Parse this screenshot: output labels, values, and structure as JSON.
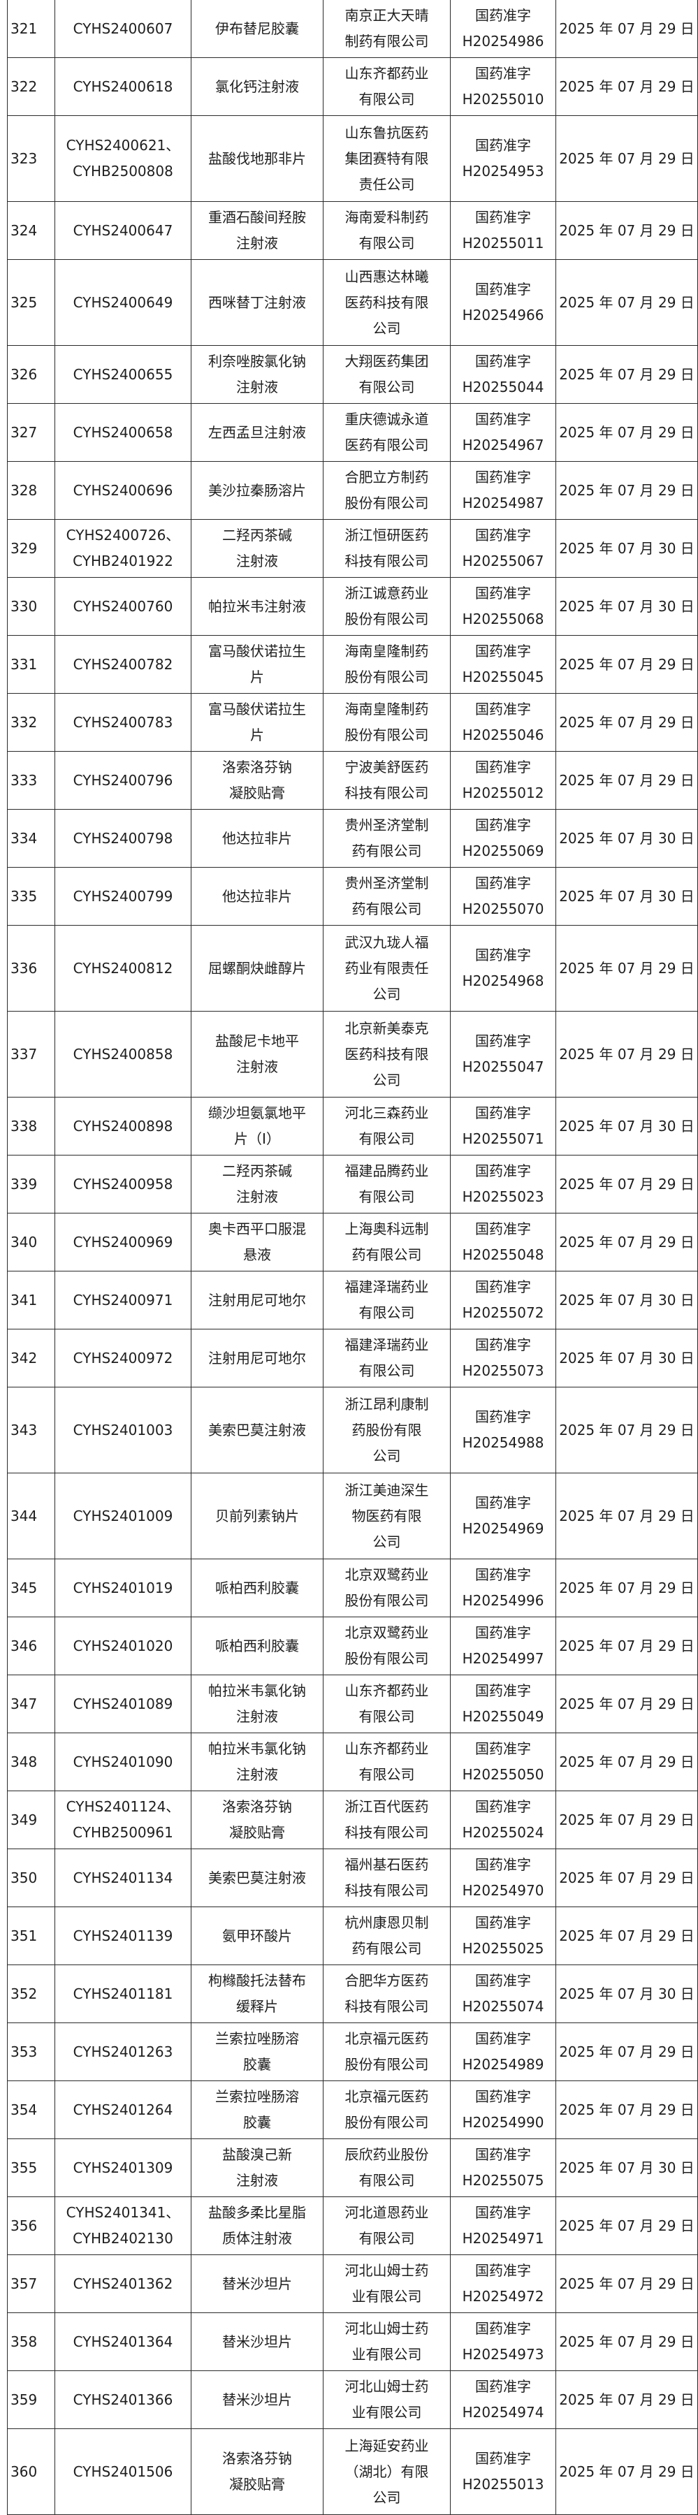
{
  "rows": [
    {
      "no": "321",
      "code": "CYHS2400607",
      "name": "伊布替尼胶囊",
      "company": "南京正大天晴\n制药有限公司",
      "approval": "国药准字\nH20254986",
      "date": "2025 年 07 月 29 日"
    },
    {
      "no": "322",
      "code": "CYHS2400618",
      "name": "氯化钙注射液",
      "company": "山东齐都药业\n有限公司",
      "approval": "国药准字\nH20255010",
      "date": "2025 年 07 月 29 日"
    },
    {
      "no": "323",
      "code": "CYHS2400621、\nCYHB2500808",
      "name": "盐酸伐地那非片",
      "company": "山东鲁抗医药\n集团赛特有限\n责任公司",
      "approval": "国药准字\nH20254953",
      "date": "2025 年 07 月 29 日"
    },
    {
      "no": "324",
      "code": "CYHS2400647",
      "name": "重酒石酸间羟胺\n注射液",
      "company": "海南爱科制药\n有限公司",
      "approval": "国药准字\nH20255011",
      "date": "2025 年 07 月 29 日"
    },
    {
      "no": "325",
      "code": "CYHS2400649",
      "name": "西咪替丁注射液",
      "company": "山西惠达林曦\n医药科技有限\n公司",
      "approval": "国药准字\nH20254966",
      "date": "2025 年 07 月 29 日"
    },
    {
      "no": "326",
      "code": "CYHS2400655",
      "name": "利奈唑胺氯化钠\n注射液",
      "company": "大翔医药集团\n有限公司",
      "approval": "国药准字\nH20255044",
      "date": "2025 年 07 月 29 日"
    },
    {
      "no": "327",
      "code": "CYHS2400658",
      "name": "左西孟旦注射液",
      "company": "重庆德诚永道\n医药有限公司",
      "approval": "国药准字\nH20254967",
      "date": "2025 年 07 月 29 日"
    },
    {
      "no": "328",
      "code": "CYHS2400696",
      "name": "美沙拉秦肠溶片",
      "company": "合肥立方制药\n股份有限公司",
      "approval": "国药准字\nH20254987",
      "date": "2025 年 07 月 29 日"
    },
    {
      "no": "329",
      "code": "CYHS2400726、\nCYHB2401922",
      "name": "二羟丙茶碱\n注射液",
      "company": "浙江恒研医药\n科技有限公司",
      "approval": "国药准字\nH20255067",
      "date": "2025 年 07 月 30 日"
    },
    {
      "no": "330",
      "code": "CYHS2400760",
      "name": "帕拉米韦注射液",
      "company": "浙江诚意药业\n股份有限公司",
      "approval": "国药准字\nH20255068",
      "date": "2025 年 07 月 30 日"
    },
    {
      "no": "331",
      "code": "CYHS2400782",
      "name": "富马酸伏诺拉生\n片",
      "company": "海南皇隆制药\n股份有限公司",
      "approval": "国药准字\nH20255045",
      "date": "2025 年 07 月 29 日"
    },
    {
      "no": "332",
      "code": "CYHS2400783",
      "name": "富马酸伏诺拉生\n片",
      "company": "海南皇隆制药\n股份有限公司",
      "approval": "国药准字\nH20255046",
      "date": "2025 年 07 月 29 日"
    },
    {
      "no": "333",
      "code": "CYHS2400796",
      "name": "洛索洛芬钠\n凝胶贴膏",
      "company": "宁波美舒医药\n科技有限公司",
      "approval": "国药准字\nH20255012",
      "date": "2025 年 07 月 29 日"
    },
    {
      "no": "334",
      "code": "CYHS2400798",
      "name": "他达拉非片",
      "company": "贵州圣济堂制\n药有限公司",
      "approval": "国药准字\nH20255069",
      "date": "2025 年 07 月 30 日"
    },
    {
      "no": "335",
      "code": "CYHS2400799",
      "name": "他达拉非片",
      "company": "贵州圣济堂制\n药有限公司",
      "approval": "国药准字\nH20255070",
      "date": "2025 年 07 月 30 日"
    },
    {
      "no": "336",
      "code": "CYHS2400812",
      "name": "屈螺酮炔雌醇片",
      "company": "武汉九珑人福\n药业有限责任\n公司",
      "approval": "国药准字\nH20254968",
      "date": "2025 年 07 月 29 日"
    },
    {
      "no": "337",
      "code": "CYHS2400858",
      "name": "盐酸尼卡地平\n注射液",
      "company": "北京新美泰克\n医药科技有限\n公司",
      "approval": "国药准字\nH20255047",
      "date": "2025 年 07 月 29 日"
    },
    {
      "no": "338",
      "code": "CYHS2400898",
      "name": "缬沙坦氨氯地平\n片（I）",
      "company": "河北三森药业\n有限公司",
      "approval": "国药准字\nH20255071",
      "date": "2025 年 07 月 30 日"
    },
    {
      "no": "339",
      "code": "CYHS2400958",
      "name": "二羟丙茶碱\n注射液",
      "company": "福建品腾药业\n有限公司",
      "approval": "国药准字\nH20255023",
      "date": "2025 年 07 月 29 日"
    },
    {
      "no": "340",
      "code": "CYHS2400969",
      "name": "奥卡西平口服混\n悬液",
      "company": "上海奥科远制\n药有限公司",
      "approval": "国药准字\nH20255048",
      "date": "2025 年 07 月 29 日"
    },
    {
      "no": "341",
      "code": "CYHS2400971",
      "name": "注射用尼可地尔",
      "company": "福建泽瑞药业\n有限公司",
      "approval": "国药准字\nH20255072",
      "date": "2025 年 07 月 30 日"
    },
    {
      "no": "342",
      "code": "CYHS2400972",
      "name": "注射用尼可地尔",
      "company": "福建泽瑞药业\n有限公司",
      "approval": "国药准字\nH20255073",
      "date": "2025 年 07 月 30 日"
    },
    {
      "no": "343",
      "code": "CYHS2401003",
      "name": "美索巴莫注射液",
      "company": "浙江昂利康制\n药股份有限\n公司",
      "approval": "国药准字\nH20254988",
      "date": "2025 年 07 月 29 日"
    },
    {
      "no": "344",
      "code": "CYHS2401009",
      "name": "贝前列素钠片",
      "company": "浙江美迪深生\n物医药有限\n公司",
      "approval": "国药准字\nH20254969",
      "date": "2025 年 07 月 29 日"
    },
    {
      "no": "345",
      "code": "CYHS2401019",
      "name": "哌柏西利胶囊",
      "company": "北京双鹭药业\n股份有限公司",
      "approval": "国药准字\nH20254996",
      "date": "2025 年 07 月 29 日"
    },
    {
      "no": "346",
      "code": "CYHS2401020",
      "name": "哌柏西利胶囊",
      "company": "北京双鹭药业\n股份有限公司",
      "approval": "国药准字\nH20254997",
      "date": "2025 年 07 月 29 日"
    },
    {
      "no": "347",
      "code": "CYHS2401089",
      "name": "帕拉米韦氯化钠\n注射液",
      "company": "山东齐都药业\n有限公司",
      "approval": "国药准字\nH20255049",
      "date": "2025 年 07 月 29 日"
    },
    {
      "no": "348",
      "code": "CYHS2401090",
      "name": "帕拉米韦氯化钠\n注射液",
      "company": "山东齐都药业\n有限公司",
      "approval": "国药准字\nH20255050",
      "date": "2025 年 07 月 29 日"
    },
    {
      "no": "349",
      "code": "CYHS2401124、\nCYHB2500961",
      "name": "洛索洛芬钠\n凝胶贴膏",
      "company": "浙江百代医药\n科技有限公司",
      "approval": "国药准字\nH20255024",
      "date": "2025 年 07 月 29 日"
    },
    {
      "no": "350",
      "code": "CYHS2401134",
      "name": "美索巴莫注射液",
      "company": "福州基石医药\n科技有限公司",
      "approval": "国药准字\nH20254970",
      "date": "2025 年 07 月 29 日"
    },
    {
      "no": "351",
      "code": "CYHS2401139",
      "name": "氨甲环酸片",
      "company": "杭州康恩贝制\n药有限公司",
      "approval": "国药准字\nH20255025",
      "date": "2025 年 07 月 29 日"
    },
    {
      "no": "352",
      "code": "CYHS2401181",
      "name": "枸橼酸托法替布\n缓释片",
      "company": "合肥华方医药\n科技有限公司",
      "approval": "国药准字\nH20255074",
      "date": "2025 年 07 月 30 日"
    },
    {
      "no": "353",
      "code": "CYHS2401263",
      "name": "兰索拉唑肠溶\n胶囊",
      "company": "北京福元医药\n股份有限公司",
      "approval": "国药准字\nH20254989",
      "date": "2025 年 07 月 29 日"
    },
    {
      "no": "354",
      "code": "CYHS2401264",
      "name": "兰索拉唑肠溶\n胶囊",
      "company": "北京福元医药\n股份有限公司",
      "approval": "国药准字\nH20254990",
      "date": "2025 年 07 月 29 日"
    },
    {
      "no": "355",
      "code": "CYHS2401309",
      "name": "盐酸溴己新\n注射液",
      "company": "辰欣药业股份\n有限公司",
      "approval": "国药准字\nH20255075",
      "date": "2025 年 07 月 30 日"
    },
    {
      "no": "356",
      "code": "CYHS2401341、\nCYHB2402130",
      "name": "盐酸多柔比星脂\n质体注射液",
      "company": "河北道恩药业\n有限公司",
      "approval": "国药准字\nH20254971",
      "date": "2025 年 07 月 29 日"
    },
    {
      "no": "357",
      "code": "CYHS2401362",
      "name": "替米沙坦片",
      "company": "河北山姆士药\n业有限公司",
      "approval": "国药准字\nH20254972",
      "date": "2025 年 07 月 29 日"
    },
    {
      "no": "358",
      "code": "CYHS2401364",
      "name": "替米沙坦片",
      "company": "河北山姆士药\n业有限公司",
      "approval": "国药准字\nH20254973",
      "date": "2025 年 07 月 29 日"
    },
    {
      "no": "359",
      "code": "CYHS2401366",
      "name": "替米沙坦片",
      "company": "河北山姆士药\n业有限公司",
      "approval": "国药准字\nH20254974",
      "date": "2025 年 07 月 29 日"
    },
    {
      "no": "360",
      "code": "CYHS2401506",
      "name": "洛索洛芬钠\n凝胶贴膏",
      "company": "上海延安药业\n（湖北）有限\n公司",
      "approval": "国药准字\nH20255013",
      "date": "2025 年 07 月 29 日"
    }
  ]
}
